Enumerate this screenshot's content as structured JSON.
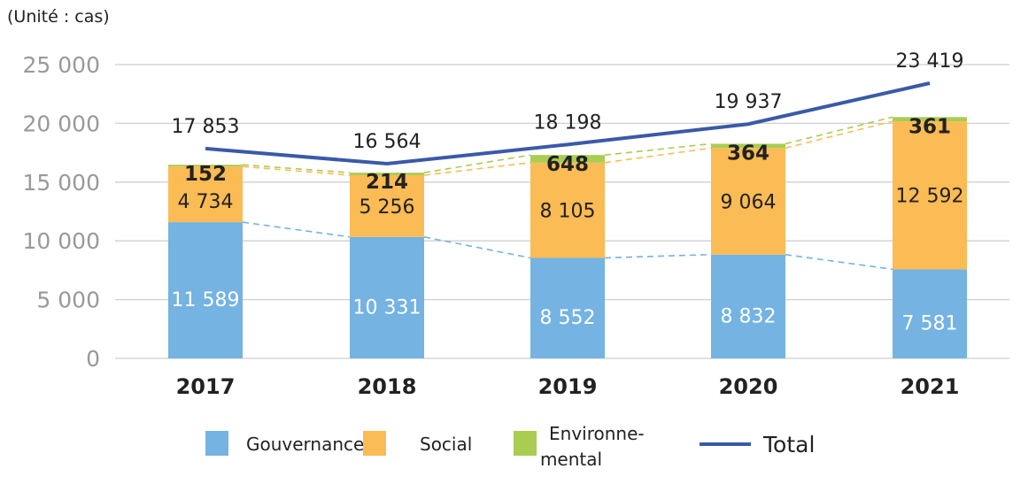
{
  "chart_data": {
    "type": "bar",
    "stacked": true,
    "unit_label": "(Unité : cas)",
    "categories": [
      "2017",
      "2018",
      "2019",
      "2020",
      "2021"
    ],
    "ylim": [
      0,
      25000
    ],
    "yticks": [
      0,
      5000,
      10000,
      15000,
      20000,
      25000
    ],
    "ytick_labels": [
      "0",
      "5 000",
      "10 000",
      "15 000",
      "20 000",
      "25 000"
    ],
    "grid": true,
    "legend_position": "bottom",
    "series": [
      {
        "name": "Gouvernance",
        "color": "#74b3e2",
        "values": [
          11589,
          10331,
          8552,
          8832,
          7581
        ],
        "labels": [
          "11 589",
          "10 331",
          "8 552",
          "8 832",
          "7 581"
        ]
      },
      {
        "name": "Social",
        "color": "#fbbb55",
        "values": [
          4734,
          5256,
          8105,
          9064,
          12592
        ],
        "labels": [
          "4 734",
          "5 256",
          "8 105",
          "9 064",
          "12 592"
        ]
      },
      {
        "name": "Environne-\nmental",
        "color": "#a9cc52",
        "values": [
          152,
          214,
          648,
          364,
          361
        ],
        "labels": [
          "152",
          "214",
          "648",
          "364",
          "361"
        ]
      },
      {
        "name": "Total",
        "type": "line",
        "color": "#3a5aa8",
        "values": [
          17853,
          16564,
          18198,
          19937,
          23419
        ],
        "labels": [
          "17 853",
          "16 564",
          "18 198",
          "19 937",
          "23 419"
        ]
      }
    ]
  }
}
